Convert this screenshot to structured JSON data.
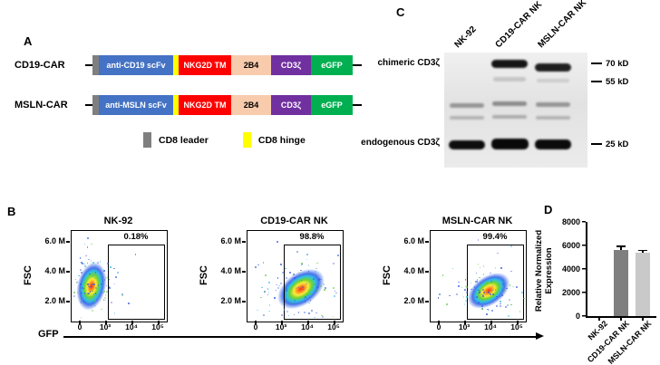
{
  "panel_a": {
    "label": "A",
    "constructs": [
      {
        "name": "CD19-CAR",
        "segments": [
          "anti-CD19 scFv",
          "NKG2D TM",
          "2B4",
          "CD3ζ",
          "eGFP"
        ]
      },
      {
        "name": "MSLN-CAR",
        "segments": [
          "anti-MSLN scFv",
          "NKG2D TM",
          "2B4",
          "CD3ζ",
          "eGFP"
        ]
      }
    ],
    "colors": {
      "scfv": "#4472c4",
      "nkg2d_tm": "#ff0000",
      "b4": "#f8cbad",
      "cd3z": "#7030a0",
      "egfp": "#00b050",
      "cd8_leader": "#7f7f7f",
      "cd8_hinge": "#ffff00"
    },
    "legend": [
      {
        "label": "CD8 leader",
        "color": "#7f7f7f"
      },
      {
        "label": "CD8 hinge",
        "color": "#ffff00"
      }
    ]
  },
  "panel_b": {
    "label": "B",
    "xlabel": "GFP",
    "ylabel": "FSC",
    "y_ticks": [
      "6.0 M",
      "4.0 M",
      "2.0 M"
    ],
    "x_ticks": [
      "0",
      "10³",
      "10⁴",
      "10⁵"
    ],
    "plots": [
      {
        "title": "NK-92",
        "percent": "0.18%"
      },
      {
        "title": "CD19-CAR NK",
        "percent": "98.8%"
      },
      {
        "title": "MSLN-CAR NK",
        "percent": "99.4%"
      }
    ]
  },
  "panel_c": {
    "label": "C",
    "lanes": [
      "NK-92",
      "CD19-CAR NK",
      "MSLN-CAR NK"
    ],
    "row_labels": [
      "chimeric CD3ζ",
      "endogenous CD3ζ"
    ],
    "markers": [
      "70 kD",
      "55 kD",
      "25 kD"
    ]
  },
  "panel_d": {
    "label": "D",
    "ylabel_line1": "Relative Normalized",
    "ylabel_line2": "Expression",
    "y_ticks": [
      "8000",
      "6000",
      "4000",
      "2000",
      "0"
    ],
    "categories": [
      "NK-92",
      "CD19-CAR NK",
      "MSLN-CAR NK"
    ]
  },
  "chart_data": [
    {
      "type": "scatter",
      "title": "NK-92",
      "xlabel": "GFP",
      "ylabel": "FSC",
      "x_tick_labels": [
        "0",
        "10³",
        "10⁴",
        "10⁵"
      ],
      "y_tick_labels": [
        "2.0 M",
        "4.0 M",
        "6.0 M"
      ],
      "gate_label": "0.18%",
      "gate_percent": 0.18,
      "population": "GFP-negative cluster near 0 GFP, FSC ≈ 2.5 M, outside gate"
    },
    {
      "type": "scatter",
      "title": "CD19-CAR NK",
      "xlabel": "GFP",
      "ylabel": "FSC",
      "x_tick_labels": [
        "0",
        "10³",
        "10⁴",
        "10⁵"
      ],
      "y_tick_labels": [
        "2.0 M",
        "4.0 M",
        "6.0 M"
      ],
      "gate_label": "98.8%",
      "gate_percent": 98.8,
      "population": "GFP-positive cluster ≈ 10³–10⁴ GFP, FSC ≈ 2.5 M, inside gate"
    },
    {
      "type": "scatter",
      "title": "MSLN-CAR NK",
      "xlabel": "GFP",
      "ylabel": "FSC",
      "x_tick_labels": [
        "0",
        "10³",
        "10⁴",
        "10⁵"
      ],
      "y_tick_labels": [
        "2.0 M",
        "4.0 M",
        "6.0 M"
      ],
      "gate_label": "99.4%",
      "gate_percent": 99.4,
      "population": "GFP-positive cluster ≈ 10³–10⁴ GFP, FSC ≈ 2.5 M, inside gate"
    },
    {
      "type": "bar",
      "categories": [
        "NK-92",
        "CD19-CAR NK",
        "MSLN-CAR NK"
      ],
      "values": [
        0,
        5600,
        5400
      ],
      "errors": [
        0,
        400,
        250
      ],
      "ylabel": "Relative Normalized Expression",
      "ylim": [
        0,
        8000
      ],
      "y_ticks": [
        0,
        2000,
        4000,
        6000,
        8000
      ],
      "bar_colors": [
        "#7f7f7f",
        "#7f7f7f",
        "#c9c9c9"
      ]
    }
  ]
}
